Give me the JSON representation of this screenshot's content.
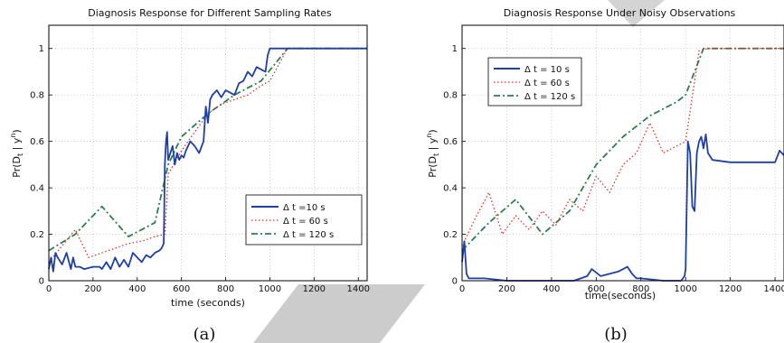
{
  "colors": {
    "blue": "#1f3fa8",
    "red": "#e0302a",
    "green": "#2e7d4f",
    "grid": "#b5b5b5",
    "axis": "#000000",
    "decor": "#c8c8c8"
  },
  "chart_data": [
    {
      "type": "line",
      "caption": "(a)",
      "title": "Diagnosis Response for Different Sampling Rates",
      "xlabel": "time (seconds)",
      "ylabel": "Pr(D",
      "ylabel_sub": "t",
      "ylabel_tail": " | y",
      "ylabel_sup": "n",
      "ylabel_end": ")",
      "xlim": [
        0,
        1440
      ],
      "ylim": [
        0,
        1.1
      ],
      "xticks": [
        0,
        200,
        400,
        600,
        800,
        1000,
        1200,
        1400
      ],
      "yticks": [
        0,
        0.2,
        0.4,
        0.6,
        0.8,
        1
      ],
      "xtick_labels": [
        "0",
        "200",
        "400",
        "600",
        "800",
        "1000",
        "1200",
        "1400"
      ],
      "ytick_labels": [
        "0",
        "0.2",
        "0.4",
        "0.6",
        "0.8",
        "1"
      ],
      "grid": true,
      "legend_position": "lower-right",
      "series": [
        {
          "name": "Δ t =10 s",
          "style": "solid",
          "color": "#1f3fa8",
          "x": [
            0,
            10,
            20,
            30,
            40,
            60,
            80,
            100,
            110,
            120,
            140,
            160,
            200,
            230,
            240,
            260,
            280,
            300,
            320,
            340,
            360,
            380,
            400,
            420,
            440,
            460,
            480,
            500,
            510,
            520,
            525,
            530,
            535,
            540,
            550,
            560,
            570,
            580,
            590,
            600,
            610,
            620,
            640,
            660,
            680,
            700,
            710,
            720,
            730,
            740,
            760,
            780,
            800,
            820,
            840,
            860,
            880,
            900,
            920,
            940,
            960,
            980,
            990,
            1000,
            1100,
            1200,
            1300,
            1440
          ],
          "y": [
            0.05,
            0.1,
            0.04,
            0.12,
            0.1,
            0.07,
            0.12,
            0.05,
            0.1,
            0.06,
            0.06,
            0.05,
            0.06,
            0.06,
            0.05,
            0.08,
            0.05,
            0.1,
            0.06,
            0.09,
            0.06,
            0.12,
            0.1,
            0.08,
            0.11,
            0.1,
            0.12,
            0.13,
            0.14,
            0.16,
            0.5,
            0.6,
            0.64,
            0.52,
            0.55,
            0.58,
            0.5,
            0.55,
            0.52,
            0.54,
            0.53,
            0.56,
            0.6,
            0.58,
            0.55,
            0.6,
            0.75,
            0.68,
            0.78,
            0.8,
            0.82,
            0.79,
            0.82,
            0.81,
            0.8,
            0.85,
            0.86,
            0.9,
            0.88,
            0.92,
            0.91,
            0.9,
            0.97,
            1,
            1,
            1,
            1,
            1
          ]
        },
        {
          "name": "Δ t = 60 s",
          "style": "dotted",
          "color": "#e0302a",
          "x": [
            0,
            60,
            120,
            180,
            240,
            300,
            360,
            420,
            480,
            525,
            540,
            600,
            660,
            720,
            780,
            840,
            900,
            960,
            1000,
            1080,
            1200,
            1440
          ],
          "y": [
            0.08,
            0.15,
            0.22,
            0.1,
            0.12,
            0.14,
            0.16,
            0.17,
            0.19,
            0.2,
            0.46,
            0.56,
            0.64,
            0.72,
            0.76,
            0.78,
            0.8,
            0.84,
            0.86,
            1,
            1,
            1
          ]
        },
        {
          "name": "Δ t = 120 s",
          "style": "dashdot",
          "color": "#2e7d4f",
          "x": [
            0,
            120,
            240,
            360,
            480,
            540,
            600,
            720,
            840,
            960,
            1080,
            1200,
            1440
          ],
          "y": [
            0.13,
            0.2,
            0.32,
            0.19,
            0.25,
            0.5,
            0.62,
            0.72,
            0.8,
            0.86,
            1,
            1,
            1
          ]
        }
      ]
    },
    {
      "type": "line",
      "caption": "(b)",
      "title": "Diagnosis Response Under Noisy Observations",
      "xlabel": "time(seconds)",
      "ylabel": "Pr(D",
      "ylabel_sub": "t",
      "ylabel_tail": " | y",
      "ylabel_sup": "n",
      "ylabel_end": ")",
      "xlim": [
        0,
        1440
      ],
      "ylim": [
        0,
        1.1
      ],
      "xticks": [
        0,
        200,
        400,
        600,
        800,
        1000,
        1200,
        1400
      ],
      "yticks": [
        0,
        0.2,
        0.4,
        0.6,
        0.8,
        1
      ],
      "xtick_labels": [
        "0",
        "200",
        "400",
        "600",
        "800",
        "1000",
        "1200",
        "1400"
      ],
      "ytick_labels": [
        "0",
        "0.2",
        "0.4",
        "0.6",
        "0.8",
        "1"
      ],
      "grid": true,
      "legend_position": "upper-left",
      "series": [
        {
          "name": "Δ t = 10 s",
          "style": "solid",
          "color": "#1f3fa8",
          "x": [
            0,
            10,
            20,
            30,
            60,
            100,
            200,
            300,
            400,
            500,
            560,
            580,
            620,
            700,
            740,
            760,
            780,
            800,
            900,
            980,
            995,
            1000,
            1010,
            1020,
            1030,
            1040,
            1050,
            1060,
            1070,
            1080,
            1090,
            1100,
            1120,
            1200,
            1300,
            1400,
            1420,
            1440
          ],
          "y": [
            0.08,
            0.17,
            0.03,
            0.01,
            0.01,
            0.01,
            0.0,
            0.0,
            0.0,
            0.0,
            0.02,
            0.05,
            0.02,
            0.04,
            0.06,
            0.03,
            0.01,
            0.01,
            0.0,
            0.0,
            0.02,
            0.05,
            0.6,
            0.55,
            0.32,
            0.3,
            0.55,
            0.6,
            0.62,
            0.57,
            0.63,
            0.55,
            0.52,
            0.51,
            0.51,
            0.51,
            0.56,
            0.54
          ]
        },
        {
          "name": "Δ t = 60 s",
          "style": "dotted",
          "color": "#e0302a",
          "x": [
            0,
            60,
            120,
            180,
            240,
            300,
            360,
            420,
            480,
            540,
            600,
            660,
            720,
            780,
            840,
            900,
            960,
            1000,
            1060,
            1100,
            1200,
            1440
          ],
          "y": [
            0.15,
            0.27,
            0.38,
            0.2,
            0.28,
            0.22,
            0.3,
            0.24,
            0.35,
            0.3,
            0.45,
            0.38,
            0.5,
            0.55,
            0.68,
            0.55,
            0.58,
            0.6,
            0.99,
            1,
            1,
            1
          ]
        },
        {
          "name": "Δ t = 120 s",
          "style": "dashdot",
          "color": "#2e7d4f",
          "x": [
            0,
            120,
            240,
            360,
            480,
            600,
            720,
            840,
            960,
            1000,
            1080,
            1200,
            1440
          ],
          "y": [
            0.13,
            0.25,
            0.35,
            0.2,
            0.3,
            0.5,
            0.62,
            0.71,
            0.77,
            0.8,
            1,
            1,
            1
          ]
        }
      ]
    }
  ]
}
